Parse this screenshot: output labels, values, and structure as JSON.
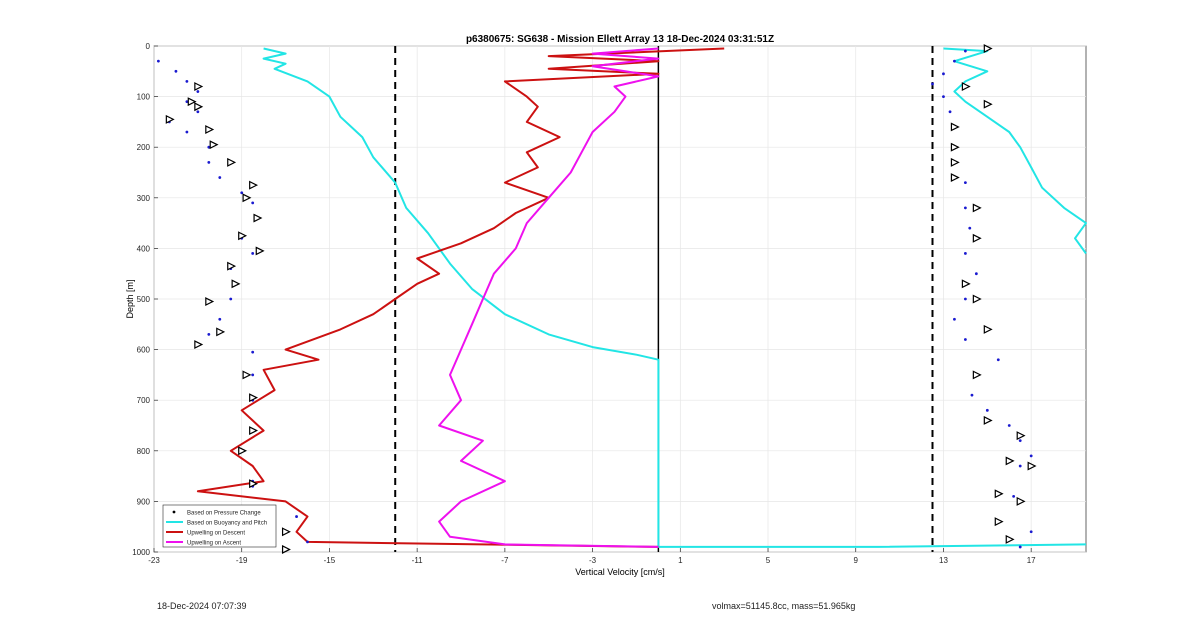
{
  "chart_data": {
    "type": "line",
    "title": "p6380675: SG638 - Mission Ellett Array 13 18-Dec-2024 03:31:51Z",
    "xlabel": "Vertical Velocity [cm/s]",
    "ylabel": "Depth [m]",
    "xlim": [
      -23,
      19.5
    ],
    "ylim": [
      1000,
      0
    ],
    "x_reversed_axis": false,
    "y_reversed_axis": true,
    "x_ticks": [
      -23,
      -19,
      -15,
      -11,
      -7,
      -3,
      1,
      5,
      9,
      13,
      17
    ],
    "y_ticks": [
      0,
      100,
      200,
      300,
      400,
      500,
      600,
      700,
      800,
      900,
      1000
    ],
    "grid": true,
    "reference_lines": [
      {
        "x": -12,
        "style": "dashed",
        "color": "#000000"
      },
      {
        "x": 12.5,
        "style": "dashed",
        "color": "#000000"
      },
      {
        "x": 0,
        "style": "solid",
        "color": "#000000"
      }
    ],
    "legend": {
      "placement": "bottom-left",
      "entries": [
        {
          "label": "Based on Pressure Change",
          "color": "#000000",
          "style": "dot"
        },
        {
          "label": "Based on Buoyancy and Pitch",
          "color": "#22e5e5",
          "style": "line"
        },
        {
          "label": "Upwelling on Descent",
          "color": "#cc1111",
          "style": "line"
        },
        {
          "label": "Upwelling on Ascent",
          "color": "#ee11ee",
          "style": "line"
        }
      ]
    },
    "series": [
      {
        "name": "Based on Buoyancy and Pitch",
        "color": "#22e5e5",
        "points": [
          [
            -18,
            5
          ],
          [
            -17,
            15
          ],
          [
            -18,
            25
          ],
          [
            -17,
            35
          ],
          [
            -17.5,
            45
          ],
          [
            -16,
            70
          ],
          [
            -15,
            100
          ],
          [
            -14.5,
            140
          ],
          [
            -13.5,
            180
          ],
          [
            -13,
            220
          ],
          [
            -12,
            270
          ],
          [
            -11.5,
            320
          ],
          [
            -10.5,
            370
          ],
          [
            -9.5,
            430
          ],
          [
            -8.5,
            480
          ],
          [
            -7,
            530
          ],
          [
            -5,
            570
          ],
          [
            -3,
            595
          ],
          [
            -1,
            610
          ],
          [
            0,
            620
          ],
          [
            0,
            700
          ],
          [
            0,
            800
          ],
          [
            0,
            900
          ],
          [
            0,
            990
          ],
          [
            10,
            990
          ],
          [
            19.5,
            985
          ]
        ]
      },
      {
        "name": "Based on Buoyancy and Pitch (ascent)",
        "color": "#22e5e5",
        "points": [
          [
            13,
            5
          ],
          [
            15,
            10
          ],
          [
            13.5,
            30
          ],
          [
            15,
            50
          ],
          [
            14,
            70
          ],
          [
            13.5,
            90
          ],
          [
            14,
            110
          ],
          [
            15,
            140
          ],
          [
            16,
            170
          ],
          [
            16.5,
            200
          ],
          [
            17,
            240
          ],
          [
            17.5,
            280
          ],
          [
            18.5,
            320
          ],
          [
            19.5,
            350
          ],
          [
            19,
            380
          ],
          [
            19.5,
            410
          ]
        ]
      },
      {
        "name": "Upwelling on Descent",
        "color": "#cc1111",
        "points": [
          [
            3,
            5
          ],
          [
            -5,
            20
          ],
          [
            0,
            30
          ],
          [
            -5,
            45
          ],
          [
            0,
            55
          ],
          [
            -7,
            70
          ],
          [
            -6,
            100
          ],
          [
            -5.5,
            120
          ],
          [
            -6,
            150
          ],
          [
            -4.5,
            180
          ],
          [
            -6,
            210
          ],
          [
            -5.5,
            240
          ],
          [
            -7,
            270
          ],
          [
            -5,
            300
          ],
          [
            -6.5,
            330
          ],
          [
            -7.5,
            360
          ],
          [
            -9,
            390
          ],
          [
            -11,
            420
          ],
          [
            -10,
            450
          ],
          [
            -11,
            470
          ],
          [
            -12,
            500
          ],
          [
            -13,
            530
          ],
          [
            -14.5,
            560
          ],
          [
            -17,
            600
          ],
          [
            -15.5,
            620
          ],
          [
            -18,
            640
          ],
          [
            -17.5,
            680
          ],
          [
            -19,
            720
          ],
          [
            -18,
            760
          ],
          [
            -19.5,
            800
          ],
          [
            -18.5,
            830
          ],
          [
            -18,
            860
          ],
          [
            -21,
            880
          ],
          [
            -17,
            900
          ],
          [
            -16,
            930
          ],
          [
            -16.5,
            960
          ],
          [
            -16,
            980
          ],
          [
            0,
            990
          ]
        ]
      },
      {
        "name": "Upwelling on Ascent",
        "color": "#ee11ee",
        "points": [
          [
            0,
            5
          ],
          [
            -3,
            15
          ],
          [
            0,
            25
          ],
          [
            -3,
            40
          ],
          [
            0,
            60
          ],
          [
            -2,
            80
          ],
          [
            -1.5,
            100
          ],
          [
            -2,
            130
          ],
          [
            -3,
            170
          ],
          [
            -3.5,
            210
          ],
          [
            -4,
            250
          ],
          [
            -5,
            300
          ],
          [
            -6,
            350
          ],
          [
            -6.5,
            400
          ],
          [
            -7.5,
            450
          ],
          [
            -8,
            500
          ],
          [
            -8.5,
            550
          ],
          [
            -9,
            600
          ],
          [
            -9.5,
            650
          ],
          [
            -9,
            700
          ],
          [
            -10,
            750
          ],
          [
            -8,
            780
          ],
          [
            -9,
            820
          ],
          [
            -7,
            860
          ],
          [
            -9,
            900
          ],
          [
            -10,
            940
          ],
          [
            -9.5,
            970
          ],
          [
            -7,
            985
          ],
          [
            0,
            990
          ]
        ]
      },
      {
        "name": "Based on Pressure Change",
        "color": "#1a1ad0",
        "type": "scatter",
        "points": [
          [
            -22.8,
            30
          ],
          [
            -22,
            50
          ],
          [
            -21.5,
            70
          ],
          [
            -21,
            90
          ],
          [
            -21.5,
            110
          ],
          [
            -21,
            130
          ],
          [
            -22.3,
            150
          ],
          [
            -21.5,
            170
          ],
          [
            -20.5,
            200
          ],
          [
            -20.5,
            230
          ],
          [
            -20,
            260
          ],
          [
            -19,
            290
          ],
          [
            -18.5,
            310
          ],
          [
            -18.3,
            340
          ],
          [
            -19,
            380
          ],
          [
            -18.5,
            410
          ],
          [
            -19.5,
            440
          ],
          [
            -19.3,
            470
          ],
          [
            -19.5,
            500
          ],
          [
            -20,
            540
          ],
          [
            -20.5,
            570
          ],
          [
            -21,
            590
          ],
          [
            -18.5,
            605
          ],
          [
            -18.5,
            650
          ],
          [
            -18.5,
            700
          ],
          [
            -18.5,
            760
          ],
          [
            -19,
            800
          ],
          [
            -18.5,
            860
          ],
          [
            -18.5,
            870
          ],
          [
            -16.5,
            930
          ],
          [
            -16,
            980
          ],
          [
            -17,
            995
          ],
          [
            14,
            10
          ],
          [
            13.5,
            30
          ],
          [
            13,
            55
          ],
          [
            12.5,
            75
          ],
          [
            13,
            100
          ],
          [
            13.3,
            130
          ],
          [
            13.5,
            160
          ],
          [
            13.5,
            200
          ],
          [
            13.5,
            230
          ],
          [
            14,
            270
          ],
          [
            14,
            320
          ],
          [
            14.2,
            360
          ],
          [
            14.5,
            380
          ],
          [
            14,
            410
          ],
          [
            14.5,
            450
          ],
          [
            14,
            500
          ],
          [
            13.5,
            540
          ],
          [
            14,
            580
          ],
          [
            15.5,
            620
          ],
          [
            14.5,
            650
          ],
          [
            14.3,
            690
          ],
          [
            15,
            720
          ],
          [
            16,
            750
          ],
          [
            16.5,
            780
          ],
          [
            17,
            810
          ],
          [
            16.5,
            830
          ],
          [
            16.2,
            890
          ],
          [
            15.5,
            940
          ],
          [
            17,
            960
          ],
          [
            16.5,
            990
          ]
        ]
      }
    ],
    "markers": [
      {
        "shape": "triangle-right",
        "points": [
          [
            -21,
            80
          ],
          [
            -21.3,
            110
          ],
          [
            -21,
            120
          ],
          [
            -22.3,
            145
          ],
          [
            -20.5,
            165
          ],
          [
            -20.3,
            195
          ],
          [
            -19.5,
            230
          ],
          [
            -18.5,
            275
          ],
          [
            -18.8,
            300
          ],
          [
            -18.3,
            340
          ],
          [
            -19,
            375
          ],
          [
            -18.2,
            405
          ],
          [
            -19.5,
            435
          ],
          [
            -19.3,
            470
          ],
          [
            -20.5,
            505
          ],
          [
            -20,
            565
          ],
          [
            -21,
            590
          ],
          [
            -18.8,
            650
          ],
          [
            -18.5,
            695
          ],
          [
            -18.5,
            760
          ],
          [
            -19,
            800
          ],
          [
            -18.5,
            865
          ],
          [
            -17,
            960
          ],
          [
            -17,
            995
          ],
          [
            15,
            5
          ],
          [
            14,
            80
          ],
          [
            15,
            115
          ],
          [
            13.5,
            160
          ],
          [
            13.5,
            200
          ],
          [
            13.5,
            230
          ],
          [
            13.5,
            260
          ],
          [
            14.5,
            320
          ],
          [
            14.5,
            380
          ],
          [
            14,
            470
          ],
          [
            14.5,
            500
          ],
          [
            15,
            560
          ],
          [
            14.5,
            650
          ],
          [
            15,
            740
          ],
          [
            16.5,
            770
          ],
          [
            16,
            820
          ],
          [
            17,
            830
          ],
          [
            15.5,
            885
          ],
          [
            16.5,
            900
          ],
          [
            15.5,
            940
          ],
          [
            16,
            975
          ]
        ]
      }
    ],
    "footer_left": "18-Dec-2024 07:07:39",
    "footer_right": "volmax=51145.8cc, mass=51.965kg"
  }
}
